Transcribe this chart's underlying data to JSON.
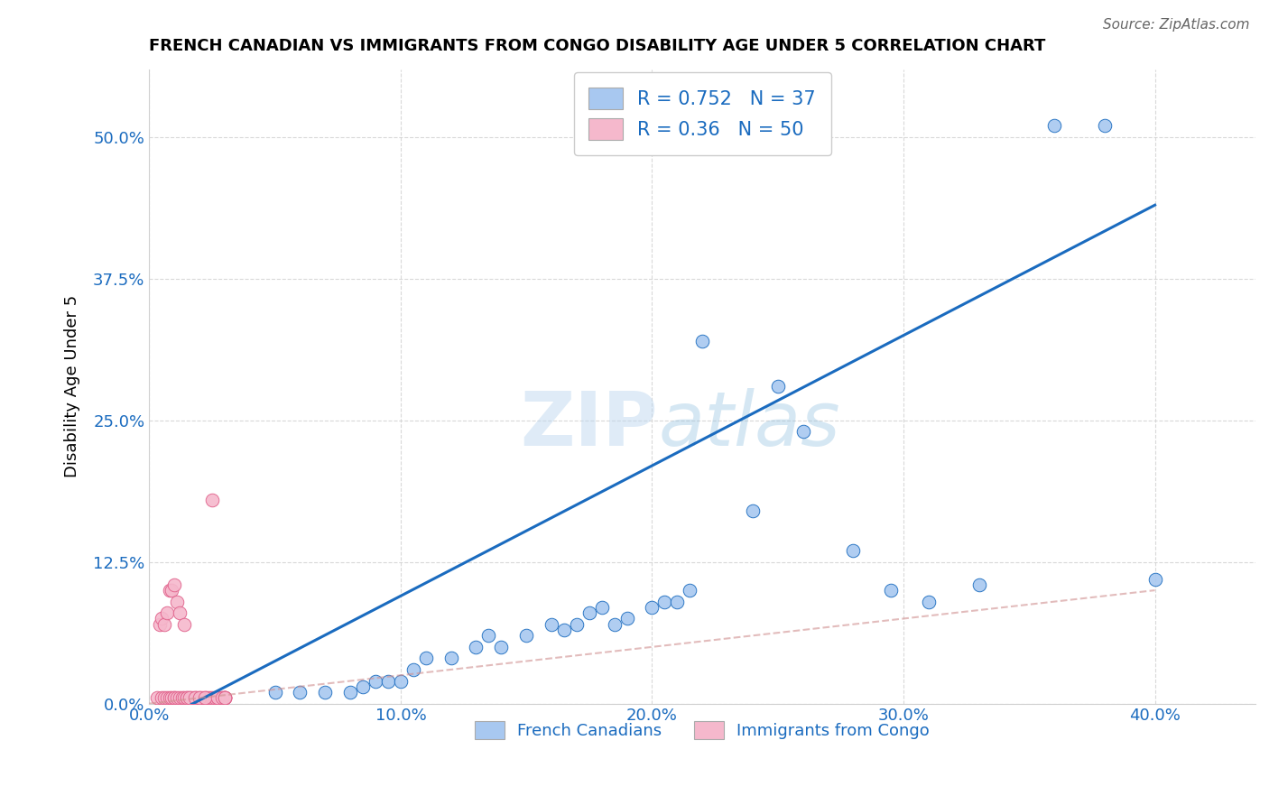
{
  "title": "FRENCH CANADIAN VS IMMIGRANTS FROM CONGO DISABILITY AGE UNDER 5 CORRELATION CHART",
  "source": "Source: ZipAtlas.com",
  "ylabel": "Disability Age Under 5",
  "xlim": [
    0.0,
    0.44
  ],
  "ylim": [
    0.0,
    0.56
  ],
  "xtick_labels": [
    "0.0%",
    "10.0%",
    "20.0%",
    "30.0%",
    "40.0%"
  ],
  "xtick_vals": [
    0.0,
    0.1,
    0.2,
    0.3,
    0.4
  ],
  "ytick_labels": [
    "0.0%",
    "12.5%",
    "25.0%",
    "37.5%",
    "50.0%"
  ],
  "ytick_vals": [
    0.0,
    0.125,
    0.25,
    0.375,
    0.5
  ],
  "blue_R": 0.752,
  "blue_N": 37,
  "pink_R": 0.36,
  "pink_N": 50,
  "blue_color": "#a8c8f0",
  "blue_line_color": "#1a6bbf",
  "pink_color": "#f5b8cc",
  "pink_line_color": "#e0608a",
  "pink_dashed_color": "#d09090",
  "watermark_zip": "ZIP",
  "watermark_atlas": "atlas",
  "legend_blue_label": "French Canadians",
  "legend_pink_label": "Immigrants from Congo",
  "blue_scatter_x": [
    0.05,
    0.06,
    0.07,
    0.08,
    0.085,
    0.09,
    0.095,
    0.1,
    0.105,
    0.11,
    0.12,
    0.13,
    0.135,
    0.14,
    0.15,
    0.16,
    0.165,
    0.17,
    0.175,
    0.18,
    0.185,
    0.19,
    0.2,
    0.205,
    0.21,
    0.215,
    0.22,
    0.24,
    0.25,
    0.26,
    0.28,
    0.295,
    0.31,
    0.33,
    0.36,
    0.38,
    0.4
  ],
  "blue_scatter_y": [
    0.01,
    0.01,
    0.01,
    0.01,
    0.015,
    0.02,
    0.02,
    0.02,
    0.03,
    0.04,
    0.04,
    0.05,
    0.06,
    0.05,
    0.06,
    0.07,
    0.065,
    0.07,
    0.08,
    0.085,
    0.07,
    0.075,
    0.085,
    0.09,
    0.09,
    0.1,
    0.32,
    0.17,
    0.28,
    0.24,
    0.135,
    0.1,
    0.09,
    0.105,
    0.51,
    0.51,
    0.11
  ],
  "pink_scatter_x": [
    0.003,
    0.005,
    0.006,
    0.007,
    0.008,
    0.009,
    0.01,
    0.01,
    0.011,
    0.012,
    0.013,
    0.014,
    0.015,
    0.016,
    0.017,
    0.018,
    0.019,
    0.02,
    0.021,
    0.022,
    0.023,
    0.024,
    0.025,
    0.026,
    0.027,
    0.028,
    0.029,
    0.03,
    0.03,
    0.03,
    0.004,
    0.005,
    0.006,
    0.007,
    0.008,
    0.009,
    0.01,
    0.011,
    0.012,
    0.014,
    0.015,
    0.016,
    0.018,
    0.02,
    0.022,
    0.025,
    0.027,
    0.029,
    0.03,
    0.03
  ],
  "pink_scatter_y": [
    0.005,
    0.005,
    0.005,
    0.005,
    0.005,
    0.005,
    0.005,
    0.005,
    0.005,
    0.005,
    0.005,
    0.005,
    0.005,
    0.005,
    0.005,
    0.005,
    0.005,
    0.005,
    0.005,
    0.005,
    0.005,
    0.005,
    0.005,
    0.005,
    0.005,
    0.005,
    0.005,
    0.005,
    0.005,
    0.005,
    0.07,
    0.075,
    0.07,
    0.08,
    0.1,
    0.1,
    0.105,
    0.09,
    0.08,
    0.07,
    0.005,
    0.005,
    0.005,
    0.005,
    0.005,
    0.18,
    0.005,
    0.005,
    0.005,
    0.005
  ],
  "blue_line_x": [
    0.0,
    0.4
  ],
  "blue_line_y": [
    -0.02,
    0.44
  ],
  "pink_line_x": [
    0.0,
    0.4
  ],
  "pink_line_y": [
    0.0,
    0.1
  ],
  "background_color": "#ffffff",
  "grid_color": "#d0d0d0"
}
